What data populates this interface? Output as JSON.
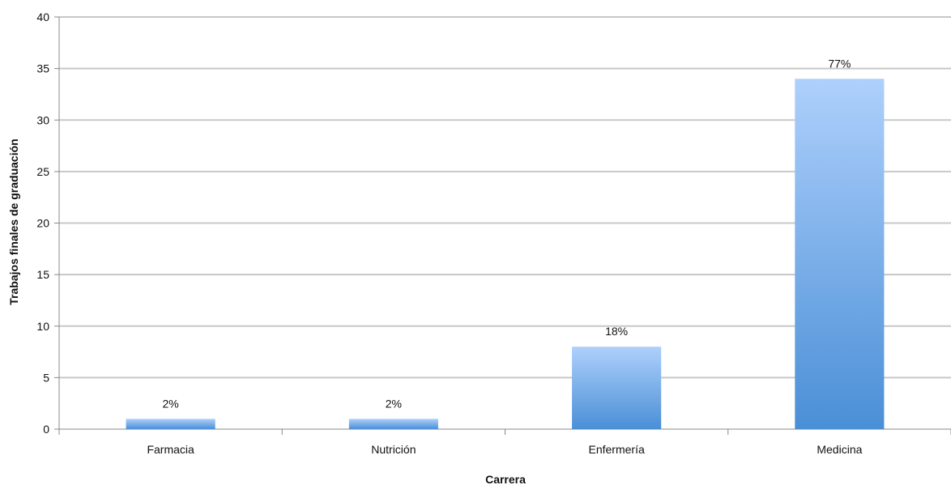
{
  "chart_data": {
    "type": "bar",
    "title": "",
    "xlabel": "Carrera",
    "ylabel": "Trabajos finales de graduación",
    "categories": [
      "Farmacia",
      "Nutrición",
      "Enfermería",
      "Medicina"
    ],
    "values": [
      1,
      1,
      8,
      34
    ],
    "data_labels": [
      "2%",
      "2%",
      "18%",
      "77%"
    ],
    "ylim": [
      0,
      40
    ],
    "yticks": [
      0,
      5,
      10,
      15,
      20,
      25,
      30,
      35,
      40
    ],
    "grid": true,
    "legend": "none",
    "colors": {
      "bar_top": "#aed0fc",
      "bar_bottom": "#4a8fd6",
      "grid": "#c8c8c8",
      "axis": "#888888"
    }
  }
}
